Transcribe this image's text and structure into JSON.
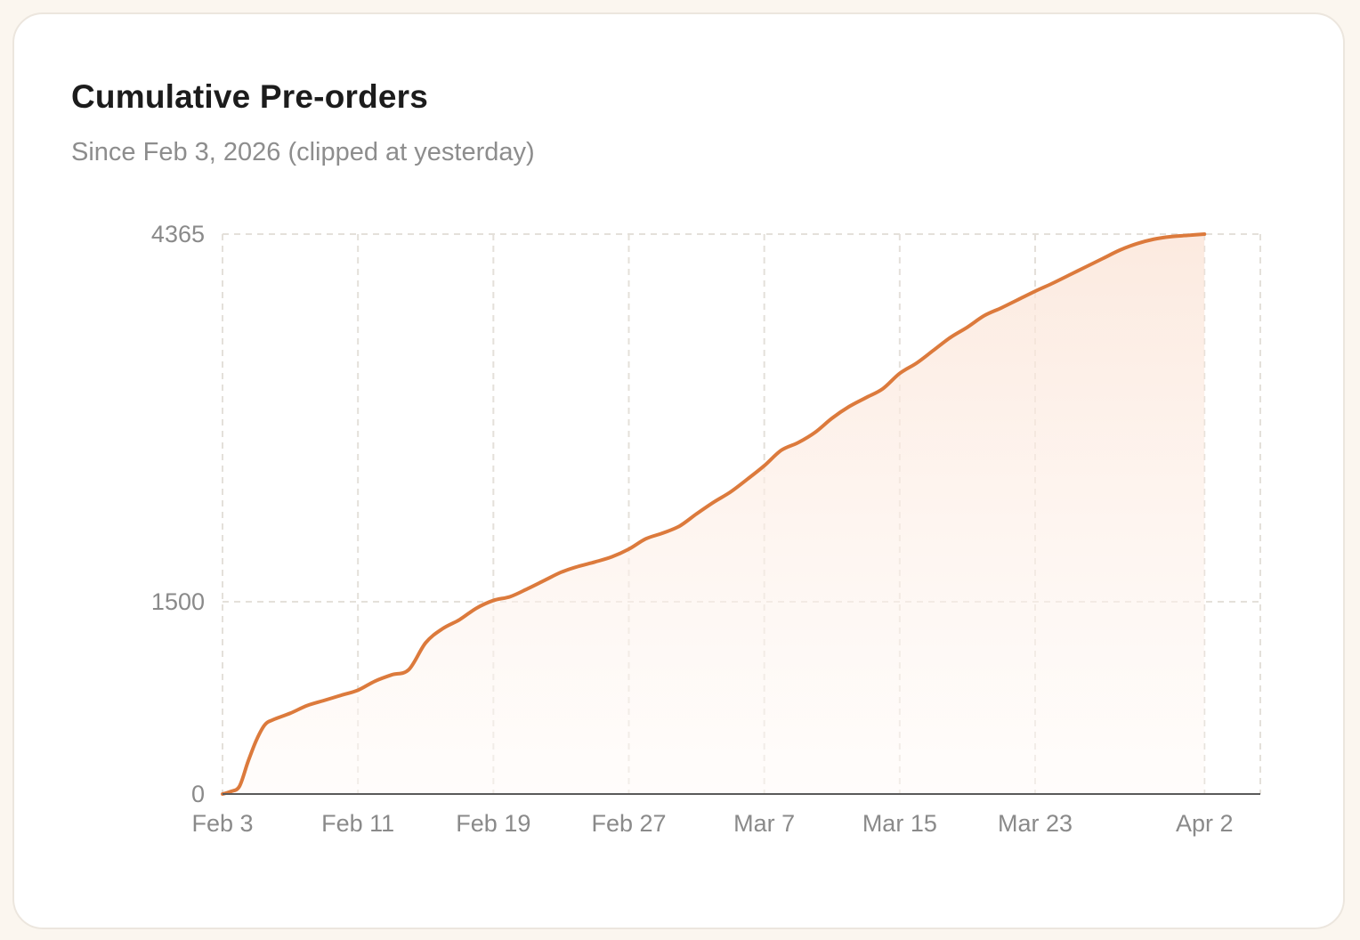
{
  "card": {
    "title": "Cumulative Pre-orders",
    "subtitle": "Since Feb 3, 2026 (clipped at yesterday)"
  },
  "colors": {
    "line": "#dc7a3c",
    "fill_top": "#fbe3d5",
    "fill_bottom": "#fffaf7"
  },
  "chart_data": {
    "type": "area",
    "title": "Cumulative Pre-orders",
    "subtitle": "Since Feb 3, 2026 (clipped at yesterday)",
    "xlabel": "",
    "ylabel": "",
    "x_unit": "days since Feb 3, 2026",
    "xlim": [
      0,
      61.3
    ],
    "ylim": [
      0,
      4365
    ],
    "y_scale": "piecewise-linear",
    "y_scale_breaks": [
      0,
      1500,
      4365
    ],
    "y_ticks": [
      {
        "value": 0,
        "label": "0"
      },
      {
        "value": 1500,
        "label": "1500"
      },
      {
        "value": 4365,
        "label": "4365"
      }
    ],
    "x_ticks": [
      {
        "day": 0,
        "label": "Feb 3"
      },
      {
        "day": 8,
        "label": "Feb 11"
      },
      {
        "day": 16,
        "label": "Feb 19"
      },
      {
        "day": 24,
        "label": "Feb 27"
      },
      {
        "day": 32,
        "label": "Mar 7"
      },
      {
        "day": 40,
        "label": "Mar 15"
      },
      {
        "day": 48,
        "label": "Mar 23"
      },
      {
        "day": 58,
        "label": "Apr 2"
      }
    ],
    "grid": true,
    "series": [
      {
        "name": "Cumulative Pre-orders",
        "x": [
          0,
          0.5,
          1,
          1.5,
          2,
          2.5,
          3,
          4,
          5,
          6,
          7,
          8,
          9,
          10,
          11,
          12,
          13,
          14,
          15,
          16,
          17,
          18,
          19,
          20,
          21,
          22,
          23,
          24,
          25,
          26,
          27,
          28,
          29,
          30,
          31,
          32,
          33,
          34,
          35,
          36,
          37,
          38,
          39,
          40,
          41,
          42,
          43,
          44,
          45,
          46,
          47,
          48,
          49,
          50,
          51,
          52,
          53,
          54,
          55,
          56,
          57,
          58
        ],
        "y": [
          0,
          20,
          60,
          250,
          420,
          540,
          580,
          630,
          690,
          730,
          770,
          810,
          880,
          930,
          970,
          1180,
          1290,
          1360,
          1450,
          1510,
          1540,
          1600,
          1665,
          1730,
          1775,
          1810,
          1850,
          1910,
          1990,
          2035,
          2090,
          2185,
          2275,
          2355,
          2455,
          2560,
          2680,
          2740,
          2820,
          2930,
          3020,
          3090,
          3160,
          3280,
          3360,
          3460,
          3560,
          3640,
          3730,
          3790,
          3855,
          3920,
          3980,
          4045,
          4110,
          4175,
          4240,
          4290,
          4325,
          4345,
          4355,
          4365
        ]
      }
    ]
  }
}
